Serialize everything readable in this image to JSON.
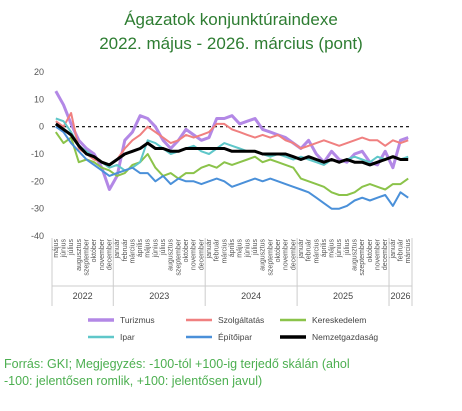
{
  "title_line1": "Ágazatok konjunktúraindexe",
  "title_line2": "2022. május - 2026. március (pont)",
  "footer_line1": "Forrás: GKI; Megjegyzés: -100-tól +100-ig terjedő skálán (ahol",
  "footer_line2": "-100: jelentősen romlik, +100: jelentősen javul)",
  "chart_data": {
    "type": "line",
    "xlabel": "",
    "ylabel": "",
    "ylim": [
      -40,
      20
    ],
    "yticks": [
      20,
      10,
      0,
      -10,
      -20,
      -30,
      -40
    ],
    "grid": false,
    "reference_line": {
      "y": 0,
      "style": "dashed"
    },
    "legend_position": "bottom",
    "x": [
      "május",
      "június",
      "július",
      "augusztus",
      "szeptember",
      "október",
      "november",
      "december",
      "január",
      "február",
      "március",
      "április",
      "május",
      "június",
      "július",
      "augusztus",
      "szeptember",
      "október",
      "november",
      "december",
      "január",
      "február",
      "március",
      "április",
      "május",
      "június",
      "július",
      "augusztus",
      "szeptember",
      "október",
      "november",
      "december",
      "január",
      "február",
      "március",
      "április",
      "május",
      "június",
      "július",
      "augusztus",
      "szeptember",
      "október",
      "november",
      "december",
      "január",
      "február",
      "március"
    ],
    "years": [
      {
        "label": "2022",
        "start": 0,
        "end": 7
      },
      {
        "label": "2023",
        "start": 8,
        "end": 19
      },
      {
        "label": "2024",
        "start": 20,
        "end": 31
      },
      {
        "label": "2025",
        "start": 32,
        "end": 43
      },
      {
        "label": "2026",
        "start": 44,
        "end": 46
      }
    ],
    "series": [
      {
        "name": "Turizmus",
        "color": "#b388e6",
        "width": 3,
        "values": [
          13,
          8,
          1,
          -5,
          -8,
          -10,
          -15,
          -23,
          -18,
          -5,
          -2,
          4,
          3,
          0,
          -5,
          -8,
          -5,
          -1,
          -3,
          -5,
          -4,
          3,
          3,
          4,
          1,
          2,
          3,
          -1,
          -2,
          -3,
          -4,
          -6,
          -8,
          -5,
          -10,
          -13,
          -9,
          -12,
          -13,
          -10,
          -9,
          -13,
          -14,
          -9,
          -15,
          -5,
          -4
        ]
      },
      {
        "name": "Szolgáltatás",
        "color": "#f08080",
        "width": 2,
        "values": [
          2,
          0,
          5,
          -8,
          -10,
          -12,
          -13,
          -14,
          -12,
          -8,
          -5,
          -3,
          0,
          -2,
          -4,
          -6,
          -5,
          -3,
          -4,
          -3,
          -2,
          1,
          1,
          -1,
          -2,
          -3,
          -4,
          -3,
          -4,
          -3,
          -5,
          -6,
          -8,
          -7,
          -6,
          -5,
          -6,
          -7,
          -6,
          -5,
          -4,
          -5,
          -5,
          -7,
          -5,
          -6,
          -5
        ]
      },
      {
        "name": "Kereskedelem",
        "color": "#8bc34a",
        "width": 2,
        "values": [
          -2,
          -6,
          -4,
          -13,
          -12,
          -13,
          -15,
          -16,
          -18,
          -17,
          -14,
          -13,
          -10,
          -15,
          -18,
          -17,
          -19,
          -17,
          -17,
          -15,
          -14,
          -15,
          -13,
          -14,
          -13,
          -12,
          -11,
          -13,
          -12,
          -13,
          -14,
          -15,
          -19,
          -20,
          -21,
          -22,
          -24,
          -25,
          -25,
          -24,
          -22,
          -21,
          -22,
          -23,
          -21,
          -21,
          -19
        ]
      },
      {
        "name": "Ipar",
        "color": "#5fc7c9",
        "width": 2,
        "values": [
          3,
          2,
          -2,
          -7,
          -9,
          -11,
          -13,
          -15,
          -14,
          -16,
          -15,
          -13,
          -5,
          -6,
          -8,
          -10,
          -9,
          -8,
          -7,
          -9,
          -10,
          -8,
          -6,
          -7,
          -8,
          -9,
          -9,
          -10,
          -11,
          -10,
          -11,
          -12,
          -11,
          -12,
          -13,
          -14,
          -12,
          -13,
          -12,
          -11,
          -12,
          -13,
          -11,
          -12,
          -11,
          -12,
          -11
        ]
      },
      {
        "name": "Építőipar",
        "color": "#4a90d9",
        "width": 2,
        "values": [
          0,
          -2,
          -6,
          -9,
          -12,
          -14,
          -16,
          -18,
          -17,
          -16,
          -15,
          -17,
          -17,
          -20,
          -18,
          -21,
          -19,
          -20,
          -20,
          -21,
          -20,
          -19,
          -20,
          -22,
          -21,
          -20,
          -19,
          -20,
          -19,
          -20,
          -21,
          -22,
          -23,
          -24,
          -26,
          -28,
          -30,
          -30,
          -29,
          -27,
          -26,
          -27,
          -26,
          -25,
          -29,
          -24,
          -26
        ]
      },
      {
        "name": "Nemzetgazdaság",
        "color": "#000000",
        "width": 3,
        "values": [
          1,
          -1,
          -3,
          -7,
          -10,
          -11,
          -13,
          -14,
          -12,
          -10,
          -9,
          -8,
          -6,
          -8,
          -8,
          -9,
          -9,
          -8,
          -8,
          -8,
          -8,
          -8,
          -8,
          -9,
          -9,
          -9,
          -9,
          -10,
          -10,
          -10,
          -10,
          -11,
          -12,
          -11,
          -12,
          -13,
          -12,
          -13,
          -12,
          -13,
          -13,
          -14,
          -13,
          -12,
          -11,
          -12,
          -12
        ]
      }
    ]
  }
}
